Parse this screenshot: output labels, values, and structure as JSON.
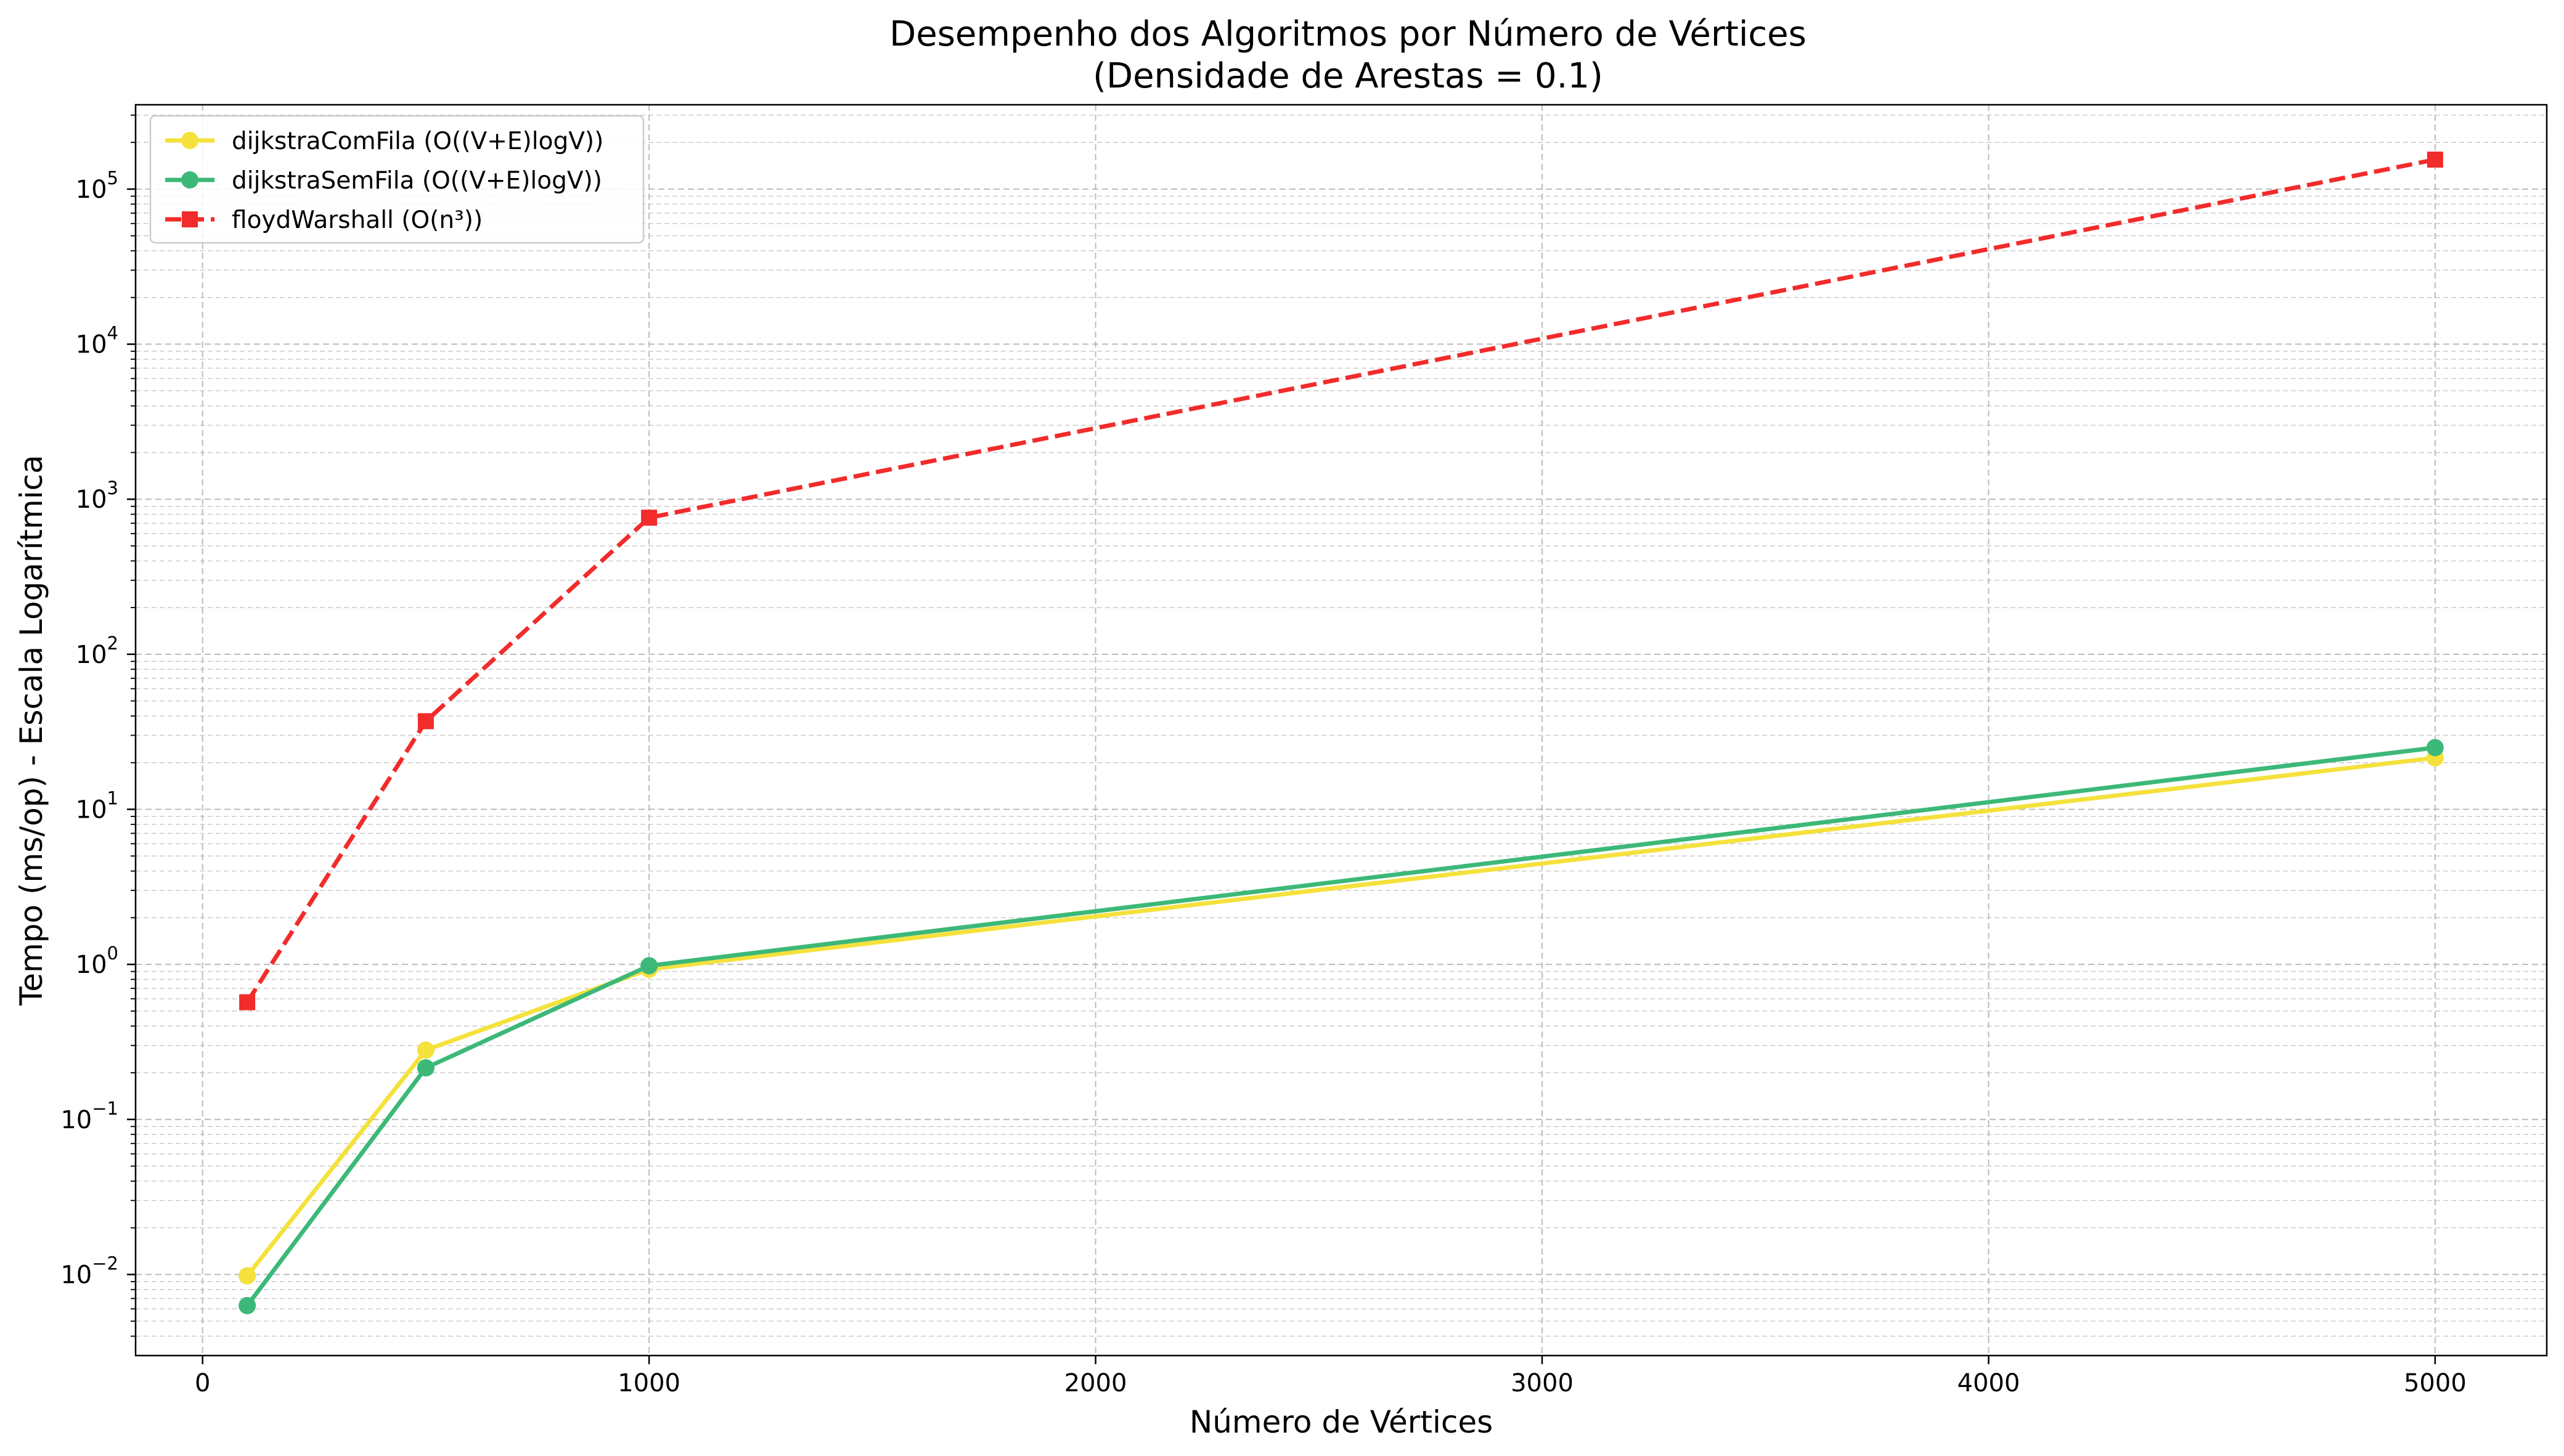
{
  "chart_data": {
    "type": "line",
    "title": "Desempenho dos Algoritmos por Número de Vértices",
    "subtitle": "(Densidade de Arestas = 0.1)",
    "xlabel": "Número de Vértices",
    "ylabel": "Tempo (ms/op) - Escala Logarítmica",
    "yscale": "log",
    "xlim": [
      -150,
      5250
    ],
    "ylim": [
      0.003,
      350000
    ],
    "xticks": [
      "0",
      "1000",
      "2000",
      "3000",
      "4000",
      "5000"
    ],
    "yticks": [
      {
        "base": "10",
        "exp": "−2"
      },
      {
        "base": "10",
        "exp": "−1"
      },
      {
        "base": "10",
        "exp": "0"
      },
      {
        "base": "10",
        "exp": "1"
      },
      {
        "base": "10",
        "exp": "2"
      },
      {
        "base": "10",
        "exp": "3"
      },
      {
        "base": "10",
        "exp": "4"
      },
      {
        "base": "10",
        "exp": "5"
      }
    ],
    "grid": true,
    "legend": "top-left",
    "x": [
      100,
      500,
      1000,
      5000
    ],
    "series": [
      {
        "name": "dijkstraComFila (O((V+E)logV))",
        "values": [
          0.0098,
          0.28,
          0.93,
          21.5
        ],
        "color": "#f5e13c",
        "marker": "circle",
        "dashed": false
      },
      {
        "name": "dijkstraSemFila (O((V+E)logV))",
        "values": [
          0.0063,
          0.215,
          0.98,
          25.0
        ],
        "color": "#3cb878",
        "marker": "circle",
        "dashed": false
      },
      {
        "name": "floydWarshall (O(n³))",
        "values": [
          0.57,
          37.0,
          760,
          155000
        ],
        "color": "#f22b2b",
        "marker": "square",
        "dashed": true
      }
    ]
  }
}
